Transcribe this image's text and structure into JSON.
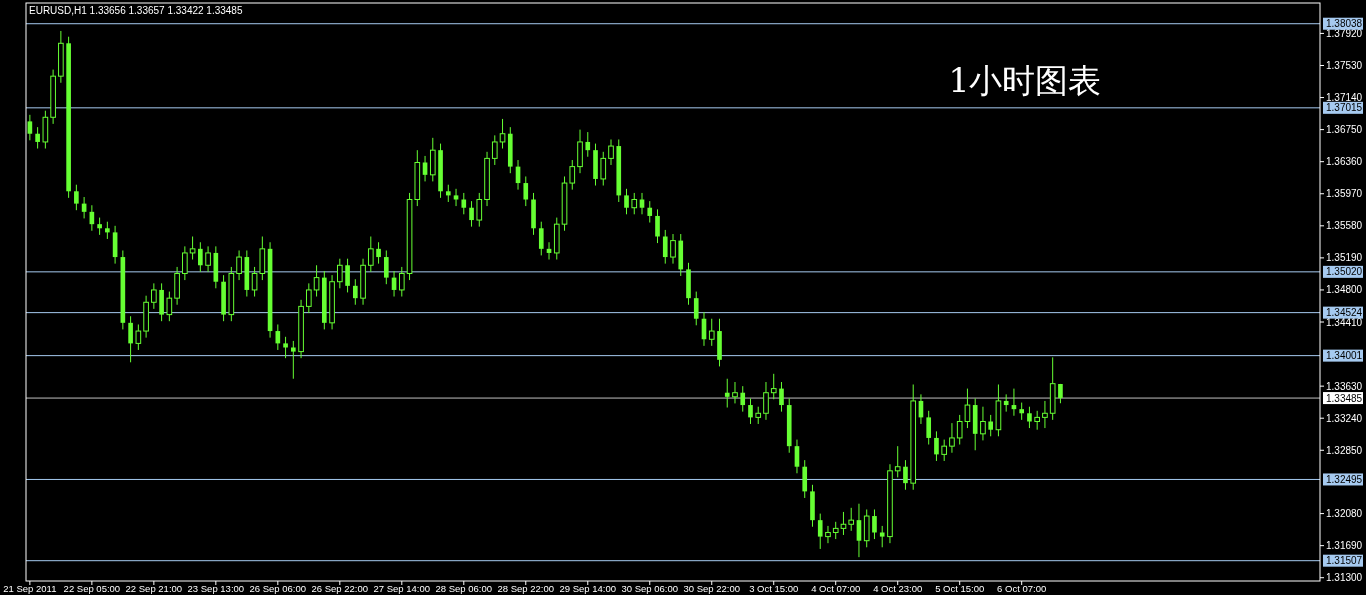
{
  "chart_data": {
    "type": "candlestick",
    "title": "EURUSD,H1  1.33656 1.33657 1.33422 1.33485",
    "annotations": [
      "1小时图表"
    ],
    "color": "#66ff33",
    "categories": [
      "21 Sep 2011",
      null,
      null,
      null,
      null,
      null,
      null,
      null,
      "22 Sep 05:00",
      null,
      null,
      null,
      null,
      null,
      null,
      null,
      "22 Sep 21:00",
      null,
      null,
      null,
      null,
      null,
      null,
      null,
      "23 Sep 13:00",
      null,
      null,
      null,
      null,
      null,
      null,
      null,
      "26 Sep 06:00",
      null,
      null,
      null,
      null,
      null,
      null,
      null,
      "26 Sep 22:00",
      null,
      null,
      null,
      null,
      null,
      null,
      null,
      "27 Sep 14:00",
      null,
      null,
      null,
      null,
      null,
      null,
      null,
      "28 Sep 06:00",
      null,
      null,
      null,
      null,
      null,
      null,
      null,
      "28 Sep 22:00",
      null,
      null,
      null,
      null,
      null,
      null,
      null,
      "29 Sep 14:00",
      null,
      null,
      null,
      null,
      null,
      null,
      null,
      "30 Sep 06:00",
      null,
      null,
      null,
      null,
      null,
      null,
      null,
      "30 Sep 22:00",
      null,
      null,
      null,
      null,
      null,
      null,
      null,
      "3 Oct 15:00",
      null,
      null,
      null,
      null,
      null,
      null,
      null,
      "4 Oct 07:00",
      null,
      null,
      null,
      null,
      null,
      null,
      null,
      "4 Oct 23:00",
      null,
      null,
      null,
      null,
      null,
      null,
      null,
      "5 Oct 15:00",
      null,
      null,
      null,
      null,
      null,
      null,
      null,
      "6 Oct 07:00",
      null,
      null,
      null,
      null,
      null,
      null,
      null,
      null,
      null,
      null,
      null,
      null,
      null,
      null,
      null,
      null,
      null,
      null,
      null,
      null,
      null,
      null,
      null,
      null,
      null,
      null,
      null,
      null,
      null,
      null,
      null,
      null,
      null,
      null,
      null,
      null,
      null,
      null
    ],
    "ohlc": [
      [
        1.3685,
        1.3693,
        1.3662,
        1.367
      ],
      [
        1.367,
        1.3678,
        1.3652,
        1.366
      ],
      [
        1.366,
        1.3698,
        1.3652,
        1.369
      ],
      [
        1.369,
        1.3748,
        1.3682,
        1.374
      ],
      [
        1.374,
        1.3795,
        1.3732,
        1.378
      ],
      [
        1.378,
        1.3788,
        1.3592,
        1.36
      ],
      [
        1.36,
        1.3608,
        1.3577,
        1.3585
      ],
      [
        1.3585,
        1.3593,
        1.3567,
        1.3575
      ],
      [
        1.3575,
        1.3583,
        1.3552,
        1.356
      ],
      [
        1.356,
        1.3568,
        1.3547,
        1.3555
      ],
      [
        1.3555,
        1.3563,
        1.3542,
        1.355
      ],
      [
        1.355,
        1.3558,
        1.3512,
        1.352
      ],
      [
        1.352,
        1.3528,
        1.3432,
        1.344
      ],
      [
        1.344,
        1.3448,
        1.3392,
        1.3415
      ],
      [
        1.3415,
        1.3438,
        1.3407,
        1.343
      ],
      [
        1.343,
        1.3473,
        1.3422,
        1.3465
      ],
      [
        1.3465,
        1.3488,
        1.3457,
        1.348
      ],
      [
        1.348,
        1.3488,
        1.3442,
        1.345
      ],
      [
        1.345,
        1.3478,
        1.3442,
        1.347
      ],
      [
        1.347,
        1.3508,
        1.3462,
        1.35
      ],
      [
        1.35,
        1.3533,
        1.3492,
        1.3525
      ],
      [
        1.3525,
        1.3545,
        1.3517,
        1.353
      ],
      [
        1.353,
        1.3538,
        1.3502,
        1.351
      ],
      [
        1.351,
        1.3533,
        1.3502,
        1.3525
      ],
      [
        1.3525,
        1.3533,
        1.3482,
        1.349
      ],
      [
        1.349,
        1.3498,
        1.3442,
        1.345
      ],
      [
        1.345,
        1.3508,
        1.3442,
        1.35
      ],
      [
        1.35,
        1.3528,
        1.3492,
        1.352
      ],
      [
        1.352,
        1.3528,
        1.3472,
        1.348
      ],
      [
        1.348,
        1.3508,
        1.3472,
        1.35
      ],
      [
        1.35,
        1.3545,
        1.3492,
        1.353
      ],
      [
        1.353,
        1.3538,
        1.3422,
        1.343
      ],
      [
        1.343,
        1.3438,
        1.3407,
        1.3415
      ],
      [
        1.3415,
        1.3423,
        1.3397,
        1.341
      ],
      [
        1.341,
        1.3418,
        1.3372,
        1.3405
      ],
      [
        1.3405,
        1.3468,
        1.3397,
        1.346
      ],
      [
        1.346,
        1.3488,
        1.3452,
        1.348
      ],
      [
        1.348,
        1.351,
        1.3472,
        1.3495
      ],
      [
        1.3495,
        1.3503,
        1.3432,
        1.344
      ],
      [
        1.344,
        1.3498,
        1.3432,
        1.349
      ],
      [
        1.349,
        1.3518,
        1.3482,
        1.351
      ],
      [
        1.351,
        1.3518,
        1.3477,
        1.3485
      ],
      [
        1.3485,
        1.3493,
        1.3462,
        1.347
      ],
      [
        1.347,
        1.3518,
        1.3462,
        1.351
      ],
      [
        1.351,
        1.3545,
        1.3502,
        1.353
      ],
      [
        1.353,
        1.3538,
        1.3512,
        1.352
      ],
      [
        1.352,
        1.3528,
        1.3487,
        1.3495
      ],
      [
        1.3495,
        1.3503,
        1.3472,
        1.348
      ],
      [
        1.348,
        1.3508,
        1.3472,
        1.35
      ],
      [
        1.35,
        1.3598,
        1.3492,
        1.359
      ],
      [
        1.359,
        1.365,
        1.3582,
        1.3635
      ],
      [
        1.3635,
        1.3643,
        1.3612,
        1.362
      ],
      [
        1.362,
        1.3665,
        1.3612,
        1.365
      ],
      [
        1.365,
        1.3658,
        1.3592,
        1.36
      ],
      [
        1.36,
        1.3608,
        1.3587,
        1.3595
      ],
      [
        1.3595,
        1.3603,
        1.3582,
        1.359
      ],
      [
        1.359,
        1.3598,
        1.3572,
        1.358
      ],
      [
        1.358,
        1.3588,
        1.3557,
        1.3565
      ],
      [
        1.3565,
        1.3598,
        1.3557,
        1.359
      ],
      [
        1.359,
        1.3648,
        1.3582,
        1.364
      ],
      [
        1.364,
        1.3668,
        1.3632,
        1.366
      ],
      [
        1.366,
        1.3688,
        1.3652,
        1.367
      ],
      [
        1.367,
        1.3678,
        1.3622,
        1.363
      ],
      [
        1.363,
        1.3638,
        1.3602,
        1.361
      ],
      [
        1.361,
        1.3618,
        1.3582,
        1.359
      ],
      [
        1.359,
        1.3598,
        1.3547,
        1.3555
      ],
      [
        1.3555,
        1.3563,
        1.3522,
        1.353
      ],
      [
        1.353,
        1.3538,
        1.3517,
        1.3525
      ],
      [
        1.3525,
        1.3568,
        1.3517,
        1.356
      ],
      [
        1.356,
        1.3618,
        1.3552,
        1.361
      ],
      [
        1.361,
        1.3638,
        1.3602,
        1.363
      ],
      [
        1.363,
        1.3675,
        1.3622,
        1.366
      ],
      [
        1.366,
        1.3672,
        1.3642,
        1.365
      ],
      [
        1.365,
        1.3658,
        1.3607,
        1.3615
      ],
      [
        1.3615,
        1.3648,
        1.3607,
        1.364
      ],
      [
        1.364,
        1.3663,
        1.3632,
        1.3655
      ],
      [
        1.3655,
        1.3663,
        1.3587,
        1.3595
      ],
      [
        1.3595,
        1.3603,
        1.3572,
        1.358
      ],
      [
        1.358,
        1.3598,
        1.3572,
        1.359
      ],
      [
        1.359,
        1.3598,
        1.3572,
        1.358
      ],
      [
        1.358,
        1.3588,
        1.3562,
        1.357
      ],
      [
        1.357,
        1.3578,
        1.3537,
        1.3545
      ],
      [
        1.3545,
        1.3553,
        1.3512,
        1.352
      ],
      [
        1.352,
        1.3548,
        1.3512,
        1.354
      ],
      [
        1.354,
        1.3548,
        1.3497,
        1.3505
      ],
      [
        1.3505,
        1.3513,
        1.3462,
        1.347
      ],
      [
        1.347,
        1.3478,
        1.3437,
        1.3445
      ],
      [
        1.3445,
        1.3453,
        1.3412,
        1.342
      ],
      [
        1.342,
        1.3445,
        1.3412,
        1.343
      ],
      [
        1.343,
        1.3445,
        1.3387,
        1.3395
      ],
      [
        1.3355,
        1.3372,
        1.3337,
        1.335
      ],
      [
        1.335,
        1.3368,
        1.3342,
        1.3355
      ],
      [
        1.3355,
        1.3363,
        1.3332,
        1.334
      ],
      [
        1.334,
        1.3348,
        1.3317,
        1.3325
      ],
      [
        1.3325,
        1.3338,
        1.3317,
        1.333
      ],
      [
        1.333,
        1.3368,
        1.3322,
        1.3355
      ],
      [
        1.3355,
        1.3378,
        1.3347,
        1.336
      ],
      [
        1.336,
        1.3368,
        1.3332,
        1.334
      ],
      [
        1.334,
        1.3348,
        1.3282,
        1.329
      ],
      [
        1.329,
        1.3298,
        1.3257,
        1.3265
      ],
      [
        1.3265,
        1.3273,
        1.3227,
        1.3235
      ],
      [
        1.3235,
        1.3243,
        1.3192,
        1.32
      ],
      [
        1.32,
        1.3208,
        1.3165,
        1.318
      ],
      [
        1.318,
        1.3193,
        1.3172,
        1.3185
      ],
      [
        1.3185,
        1.3198,
        1.3177,
        1.319
      ],
      [
        1.319,
        1.321,
        1.3182,
        1.3195
      ],
      [
        1.3195,
        1.3215,
        1.3187,
        1.32
      ],
      [
        1.32,
        1.322,
        1.3155,
        1.3175
      ],
      [
        1.3175,
        1.3213,
        1.3167,
        1.3205
      ],
      [
        1.3205,
        1.3213,
        1.3177,
        1.3185
      ],
      [
        1.3185,
        1.3193,
        1.3167,
        1.318
      ],
      [
        1.318,
        1.3268,
        1.3172,
        1.326
      ],
      [
        1.326,
        1.329,
        1.3252,
        1.3265
      ],
      [
        1.3265,
        1.3273,
        1.3237,
        1.3245
      ],
      [
        1.3245,
        1.3365,
        1.3237,
        1.3345
      ],
      [
        1.3345,
        1.3353,
        1.3317,
        1.3325
      ],
      [
        1.3325,
        1.3333,
        1.3292,
        1.33
      ],
      [
        1.33,
        1.3308,
        1.3272,
        1.328
      ],
      [
        1.328,
        1.3298,
        1.3272,
        1.329
      ],
      [
        1.329,
        1.3318,
        1.3282,
        1.33
      ],
      [
        1.33,
        1.3328,
        1.3292,
        1.332
      ],
      [
        1.332,
        1.336,
        1.3312,
        1.334
      ],
      [
        1.334,
        1.3348,
        1.3285,
        1.3305
      ],
      [
        1.3305,
        1.3338,
        1.3297,
        1.332
      ],
      [
        1.332,
        1.3328,
        1.3302,
        1.331
      ],
      [
        1.331,
        1.3365,
        1.3302,
        1.3345
      ],
      [
        1.3345,
        1.3353,
        1.3332,
        1.334
      ],
      [
        1.334,
        1.336,
        1.3327,
        1.3335
      ],
      [
        1.3335,
        1.3343,
        1.3322,
        1.333
      ],
      [
        1.333,
        1.3338,
        1.3312,
        1.332
      ],
      [
        1.332,
        1.3333,
        1.331,
        1.3325
      ],
      [
        1.3325,
        1.3345,
        1.3312,
        1.333
      ],
      [
        1.333,
        1.3398,
        1.3322,
        1.3366
      ],
      [
        1.33656,
        1.33657,
        1.33422,
        1.33485
      ],
      null,
      null,
      null,
      null,
      null,
      null,
      null,
      null,
      null,
      null,
      null,
      null,
      null,
      null,
      null,
      null,
      null,
      null,
      null,
      null,
      null,
      null,
      null,
      null,
      null,
      null,
      null,
      null,
      null,
      null,
      null,
      null,
      null
    ],
    "ylim": [
      1.3126,
      1.3829
    ],
    "yticks": [
      {
        "value": 1.3792,
        "label": "1.37920"
      },
      {
        "value": 1.3753,
        "label": "1.37530"
      },
      {
        "value": 1.3714,
        "label": "1.37140"
      },
      {
        "value": 1.3675,
        "label": "1.36750"
      },
      {
        "value": 1.3636,
        "label": "1.36360"
      },
      {
        "value": 1.3597,
        "label": "1.35970"
      },
      {
        "value": 1.3558,
        "label": "1.35580"
      },
      {
        "value": 1.3519,
        "label": "1.35190"
      },
      {
        "value": 1.348,
        "label": "1.34800"
      },
      {
        "value": 1.3441,
        "label": "1.34410"
      },
      {
        "value": 1.3363,
        "label": "1.33630"
      },
      {
        "value": 1.3324,
        "label": "1.33240"
      },
      {
        "value": 1.3285,
        "label": "1.32850"
      },
      {
        "value": 1.3208,
        "label": "1.32080"
      },
      {
        "value": 1.3169,
        "label": "1.31690"
      },
      {
        "value": 1.313,
        "label": "1.31300"
      }
    ],
    "ref_lines": [
      {
        "axis": "y",
        "value": 1.38038,
        "label": "1.38038",
        "color": "#a6caf0"
      },
      {
        "axis": "y",
        "value": 1.37015,
        "label": "1.37015",
        "color": "#a6caf0"
      },
      {
        "axis": "y",
        "value": 1.3502,
        "label": "1.35020",
        "color": "#a6caf0"
      },
      {
        "axis": "y",
        "value": 1.34524,
        "label": "1.34524",
        "color": "#a6caf0"
      },
      {
        "axis": "y",
        "value": 1.34001,
        "label": "1.34001",
        "color": "#a6caf0"
      },
      {
        "axis": "y",
        "value": 1.33485,
        "label": "1.33485",
        "color": "#c0c0c0"
      },
      {
        "axis": "y",
        "value": 1.32495,
        "label": "1.32495",
        "color": "#a6caf0"
      },
      {
        "axis": "y",
        "value": 1.31507,
        "label": "1.31507",
        "color": "#a6caf0"
      }
    ]
  }
}
